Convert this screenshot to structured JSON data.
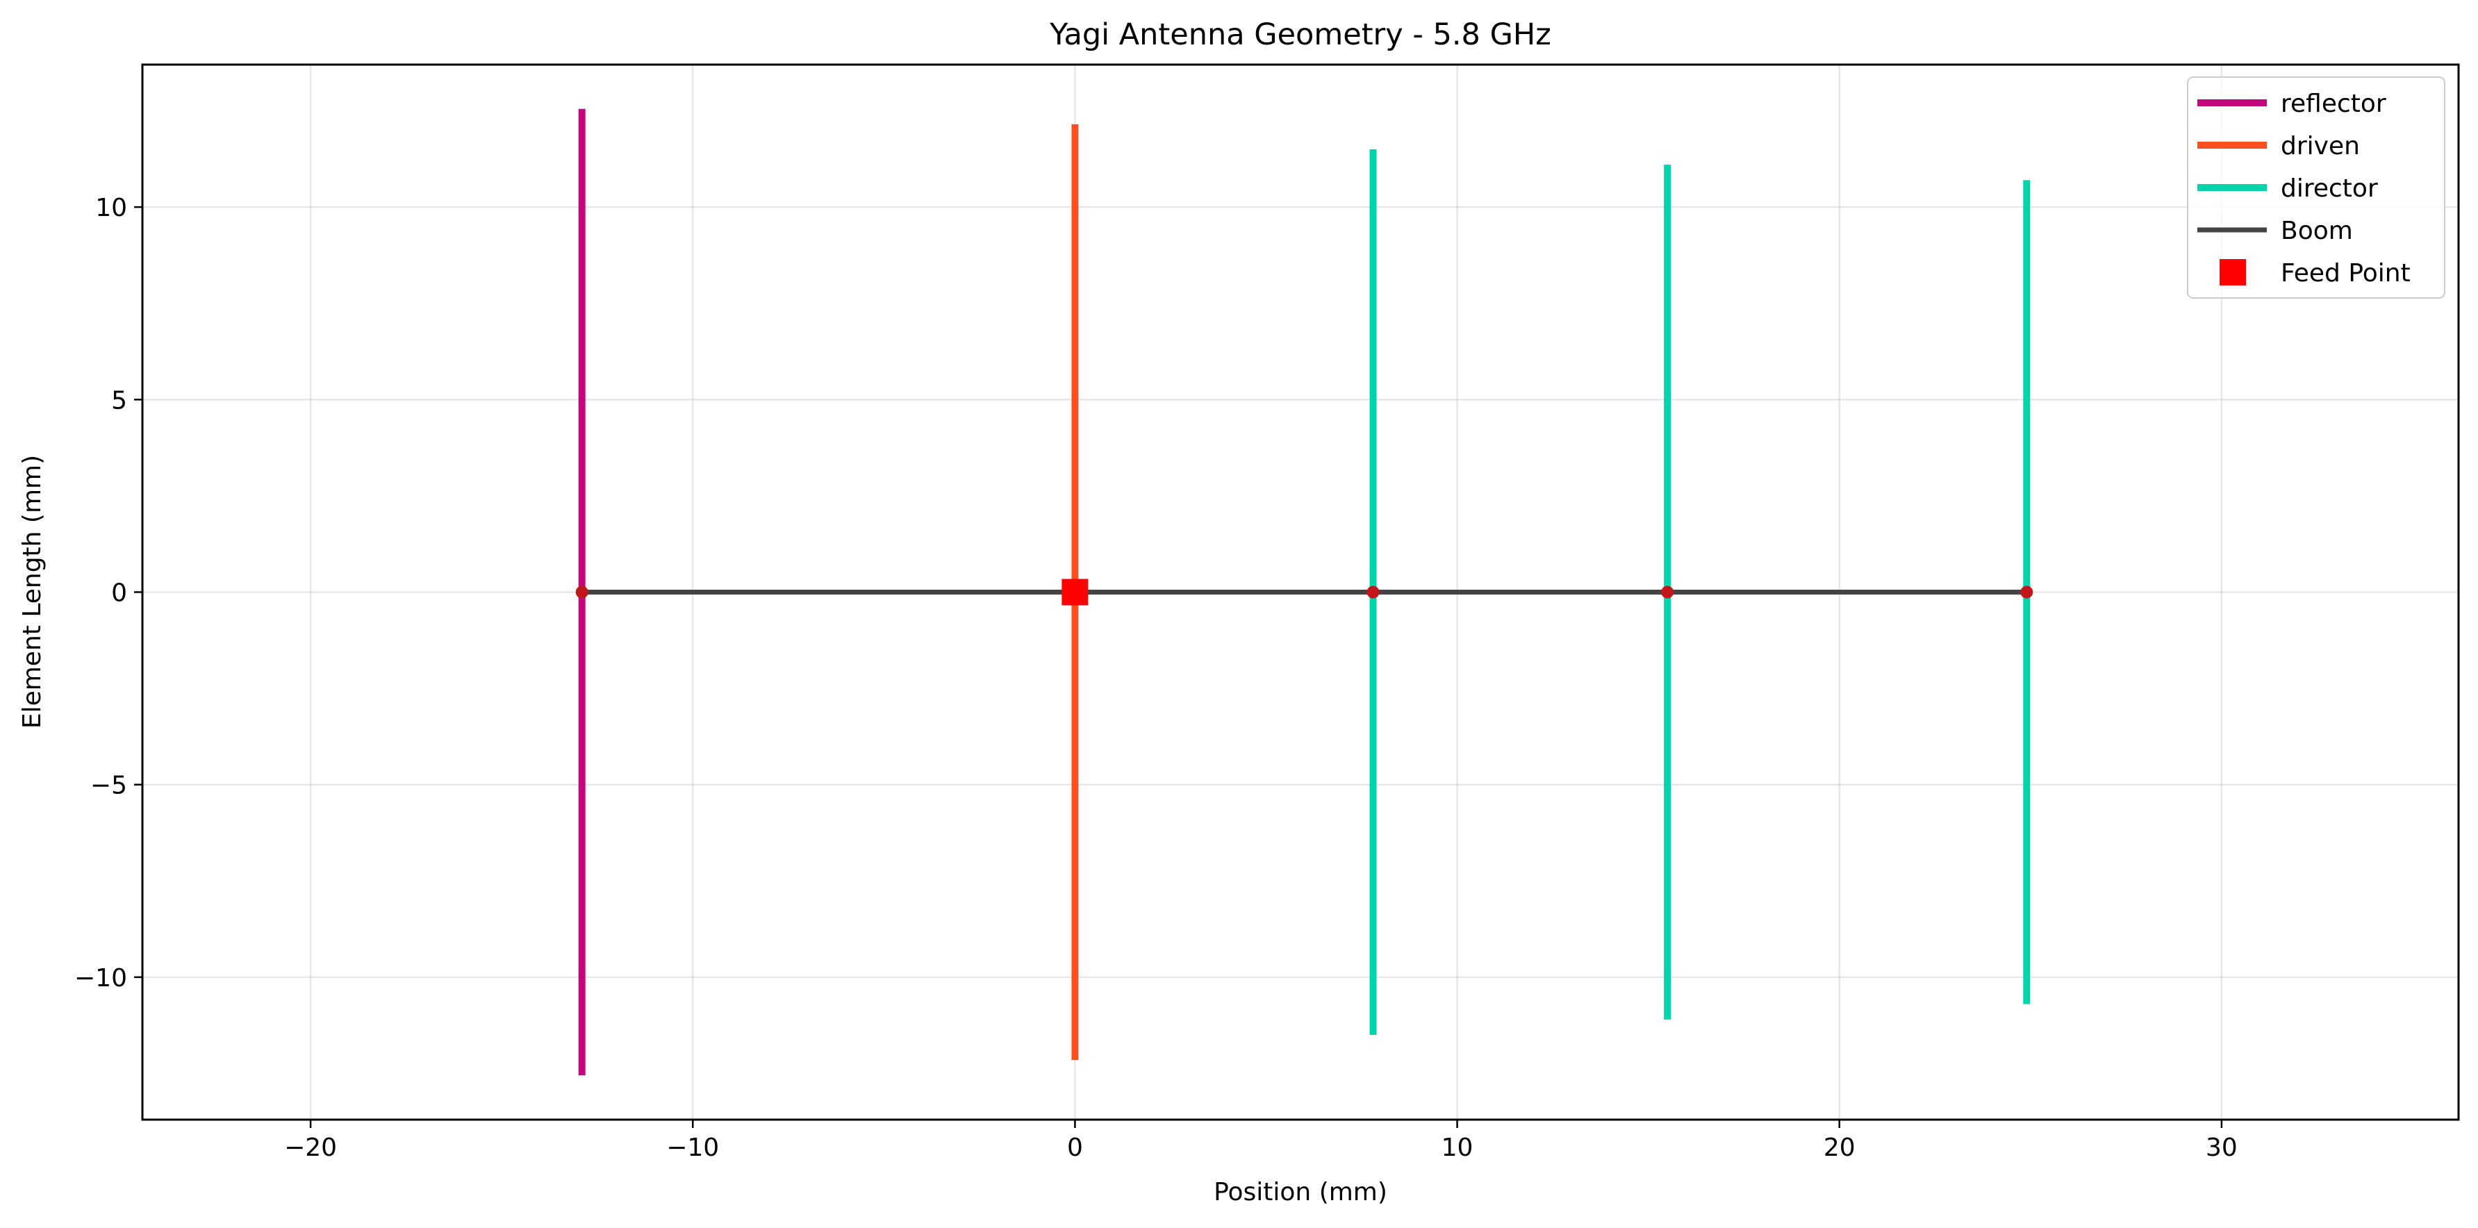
{
  "chart_data": {
    "type": "line",
    "title": "Yagi Antenna Geometry - 5.8 GHz",
    "xlabel": "Position (mm)",
    "ylabel": "Element Length (mm)",
    "xlim": [
      -24.4,
      36.2
    ],
    "ylim": [
      -13.7,
      13.7
    ],
    "xticks": [
      -20,
      -10,
      0,
      10,
      20,
      30
    ],
    "yticks": [
      -10,
      -5,
      0,
      5,
      10
    ],
    "xtick_labels": [
      "−20",
      "−10",
      "0",
      "10",
      "20",
      "30"
    ],
    "ytick_labels": [
      "−10",
      "−5",
      "0",
      "5",
      "10"
    ],
    "grid": true,
    "legend_position": "top-right",
    "colors": {
      "reflector": "#c2087a",
      "driven": "#ff4f1f",
      "director": "#00d4aa",
      "boom": "#444444",
      "feed_point": "#ff0000",
      "junction": "#c0161c"
    },
    "series": [
      {
        "name": "reflector",
        "elements": [
          {
            "x": -12.9,
            "y_min": -12.55,
            "y_max": 12.55
          }
        ]
      },
      {
        "name": "driven",
        "elements": [
          {
            "x": 0.0,
            "y_min": -12.15,
            "y_max": 12.15
          }
        ]
      },
      {
        "name": "director",
        "elements": [
          {
            "x": 7.8,
            "y_min": -11.5,
            "y_max": 11.5
          },
          {
            "x": 15.5,
            "y_min": -11.1,
            "y_max": 11.1
          },
          {
            "x": 24.9,
            "y_min": -10.7,
            "y_max": 10.7
          }
        ]
      }
    ],
    "boom": {
      "name": "Boom",
      "x_start": -12.9,
      "x_end": 24.9,
      "y": 0
    },
    "feed_point": {
      "name": "Feed Point",
      "x": 0,
      "y": 0
    },
    "junctions": [
      {
        "x": -12.9,
        "y": 0
      },
      {
        "x": 7.8,
        "y": 0
      },
      {
        "x": 15.5,
        "y": 0
      },
      {
        "x": 24.9,
        "y": 0
      }
    ],
    "legend": [
      "reflector",
      "driven",
      "director",
      "Boom",
      "Feed Point"
    ]
  }
}
